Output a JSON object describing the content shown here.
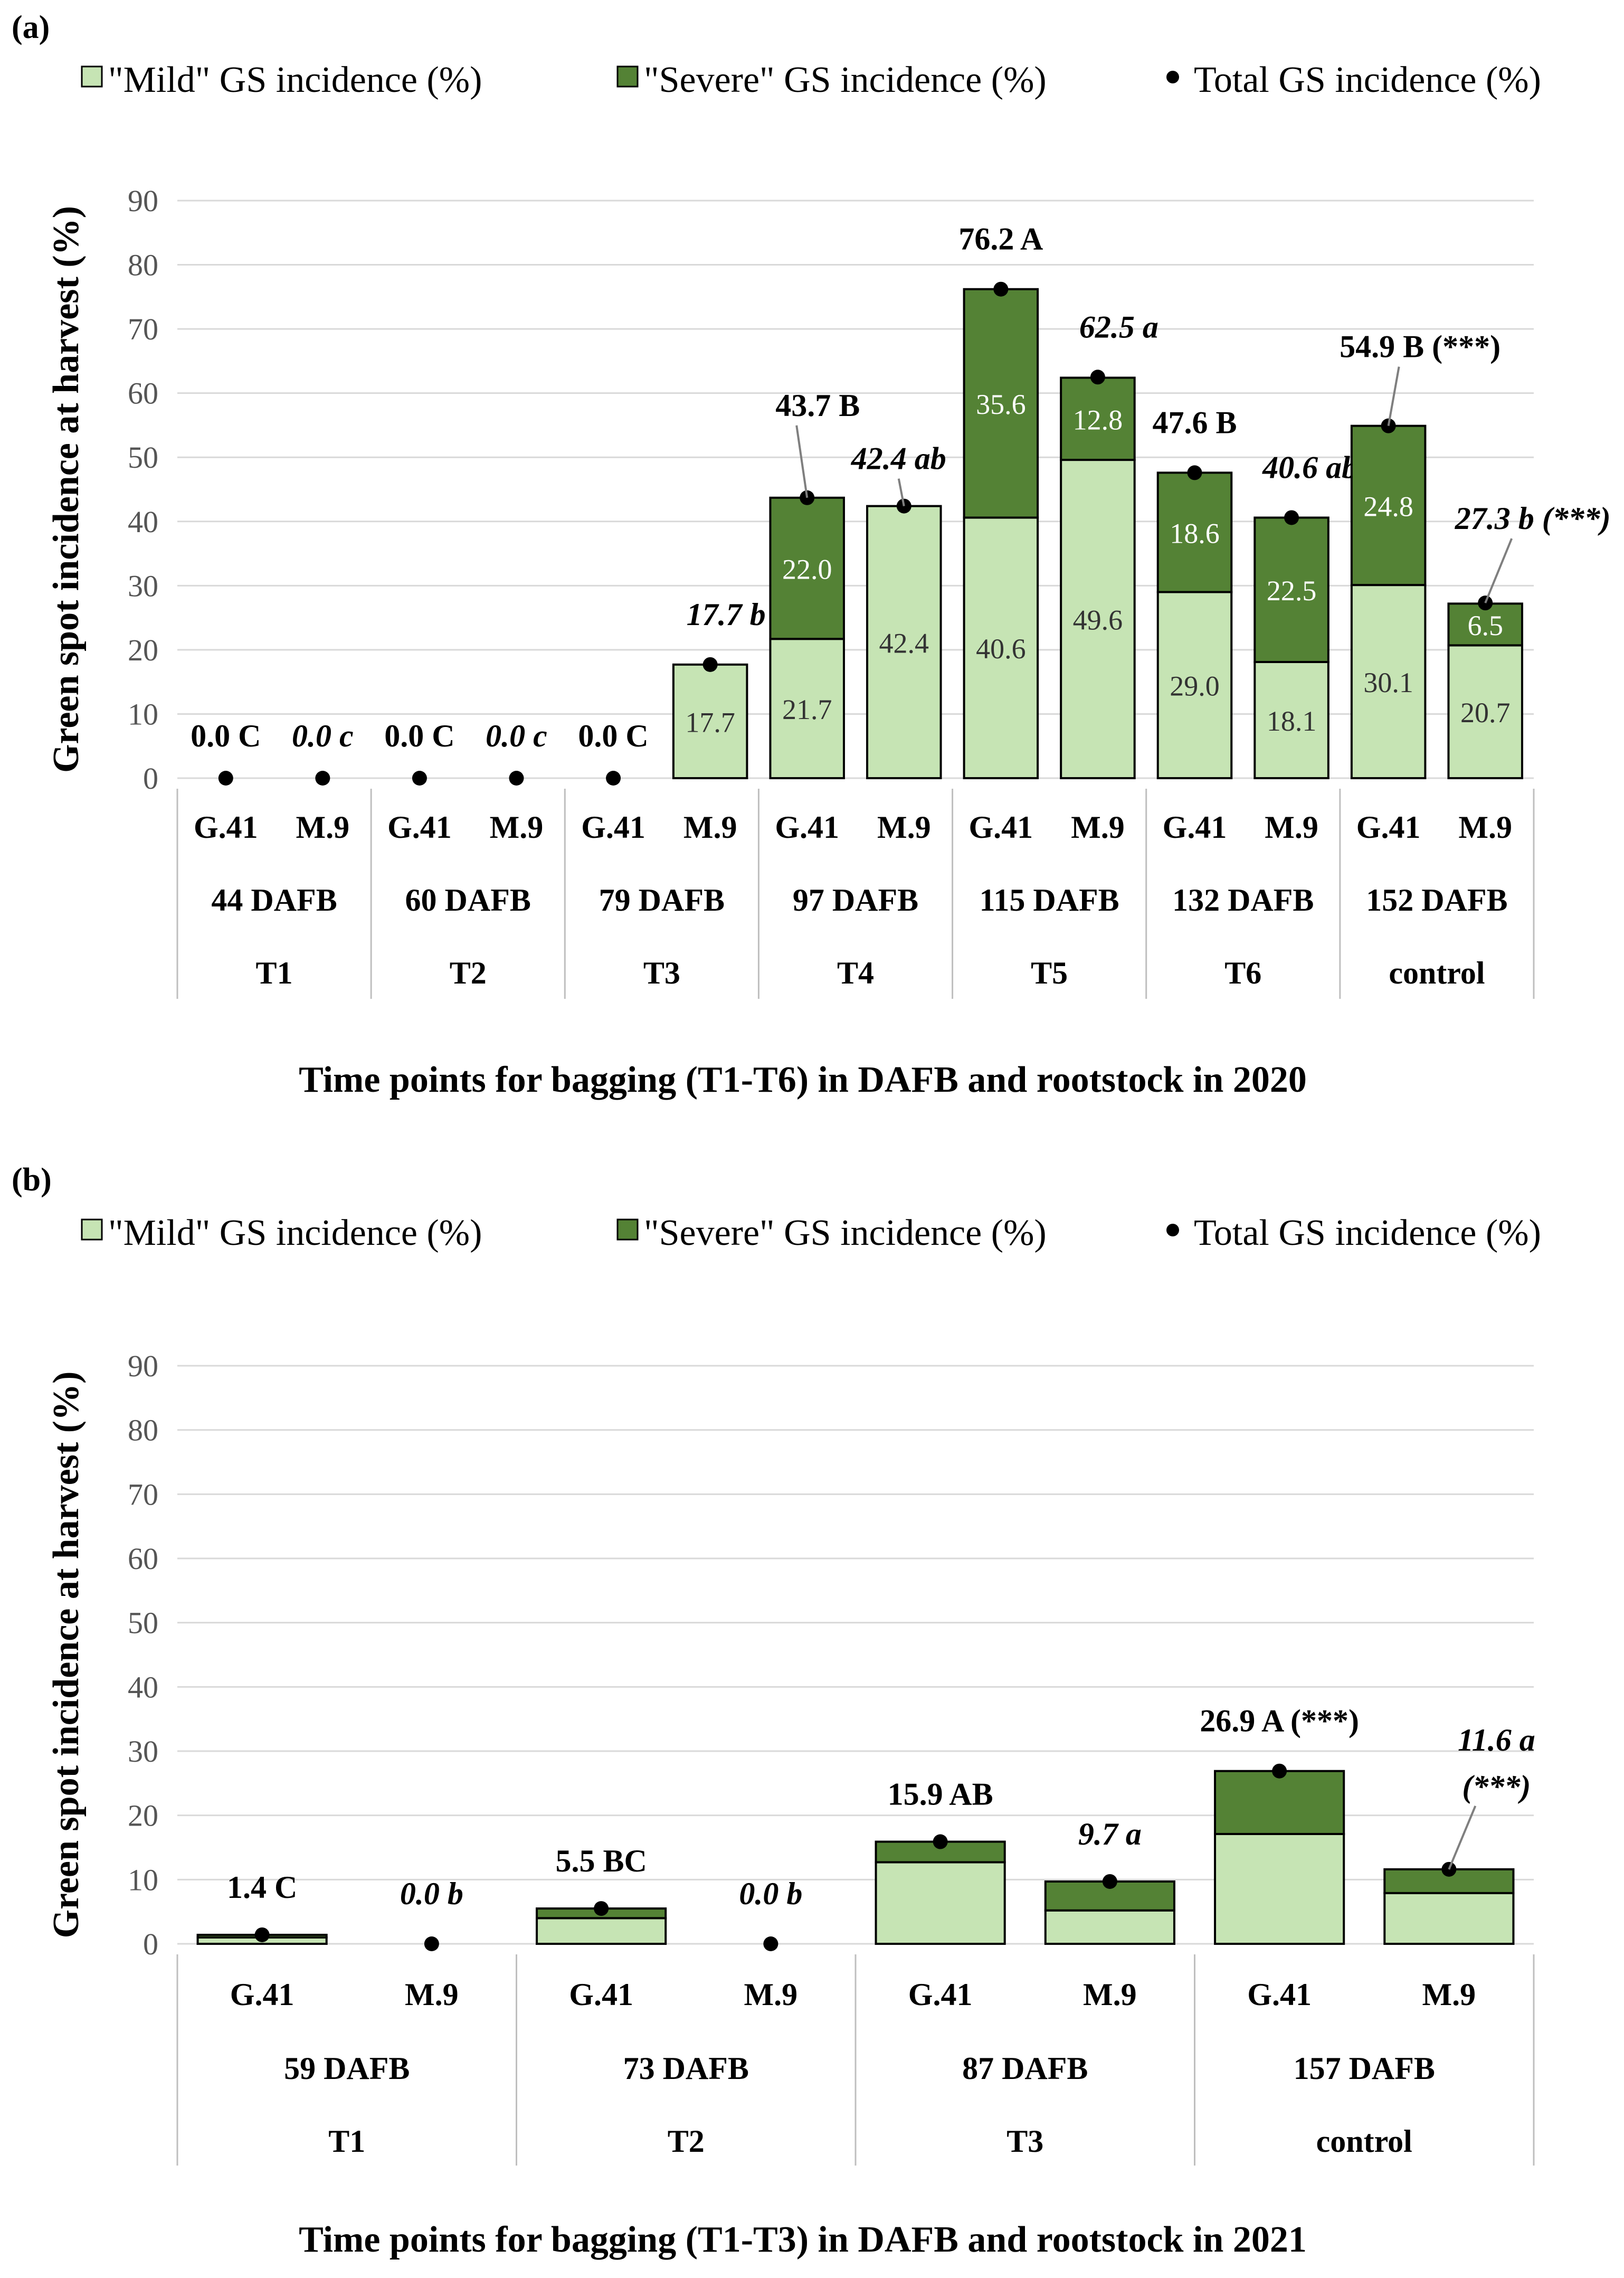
{
  "legend": {
    "mild": "\"Mild\" GS incidence (%)",
    "severe": "\"Severe\" GS incidence (%)",
    "total": "Total GS incidence (%)"
  },
  "colors": {
    "mild": "#c6e4b4",
    "severe": "#548235",
    "edge": "#000000",
    "grid": "#d9d9d9",
    "dot": "#000000"
  },
  "chart_data": [
    {
      "panel": "(a)",
      "type": "bar",
      "stacked": true,
      "ylabel": "Green spot incidence at harvest (%)",
      "xlabel": "Time points for bagging (T1-T6) in DAFB and rootstock in 2020",
      "ylim": [
        0,
        90
      ],
      "yticks": [
        0,
        10,
        20,
        30,
        40,
        50,
        60,
        70,
        80,
        90
      ],
      "grid": true,
      "groups": [
        {
          "time": "T1",
          "dafb": "44 DAFB",
          "rootstocks": [
            "G.41",
            "M.9"
          ]
        },
        {
          "time": "T2",
          "dafb": "60 DAFB",
          "rootstocks": [
            "G.41",
            "M.9"
          ]
        },
        {
          "time": "T3",
          "dafb": "79 DAFB",
          "rootstocks": [
            "G.41",
            "M.9"
          ]
        },
        {
          "time": "T4",
          "dafb": "97 DAFB",
          "rootstocks": [
            "G.41",
            "M.9"
          ]
        },
        {
          "time": "T5",
          "dafb": "115 DAFB",
          "rootstocks": [
            "G.41",
            "M.9"
          ]
        },
        {
          "time": "T6",
          "dafb": "132 DAFB",
          "rootstocks": [
            "G.41",
            "M.9"
          ]
        },
        {
          "time": "control",
          "dafb": "152  DAFB",
          "rootstocks": [
            "G.41",
            "M.9"
          ]
        }
      ],
      "series": [
        {
          "name": "Mild",
          "values": [
            0,
            0,
            0,
            0,
            0,
            17.7,
            21.7,
            42.4,
            40.6,
            49.6,
            29.0,
            18.1,
            30.1,
            20.7
          ],
          "labels": [
            "",
            "",
            "",
            "",
            "",
            "17.7",
            "21.7",
            "42.4",
            "40.6",
            "49.6",
            "29.0",
            "18.1",
            "30.1",
            "20.7"
          ]
        },
        {
          "name": "Severe",
          "values": [
            0,
            0,
            0,
            0,
            0,
            0,
            22.0,
            0,
            35.6,
            12.8,
            18.6,
            22.5,
            24.8,
            6.5
          ],
          "labels": [
            "",
            "",
            "",
            "",
            "",
            "",
            "22.0",
            "",
            "35.6",
            "12.8",
            "18.6",
            "22.5",
            "24.8",
            "6.5"
          ]
        },
        {
          "name": "Total",
          "values": [
            0,
            0,
            0,
            0,
            0,
            17.7,
            43.7,
            42.4,
            76.2,
            62.5,
            47.6,
            40.6,
            54.9,
            27.3
          ]
        }
      ],
      "total_labels": [
        {
          "value": "0.0",
          "letter": "C",
          "italic": false,
          "suffix": ""
        },
        {
          "value": "0.0",
          "letter": "c",
          "italic": true,
          "suffix": ""
        },
        {
          "value": "0.0",
          "letter": "C",
          "italic": false,
          "suffix": ""
        },
        {
          "value": "0.0",
          "letter": "c",
          "italic": true,
          "suffix": ""
        },
        {
          "value": "0.0",
          "letter": "C",
          "italic": false,
          "suffix": ""
        },
        {
          "value": "17.7",
          "letter": "b",
          "italic": true,
          "suffix": ""
        },
        {
          "value": "43.7",
          "letter": "B",
          "italic": false,
          "suffix": ""
        },
        {
          "value": "42.4",
          "letter": "ab",
          "italic": true,
          "suffix": ""
        },
        {
          "value": "76.2",
          "letter": "A",
          "italic": false,
          "suffix": ""
        },
        {
          "value": "62.5",
          "letter": "a",
          "italic": true,
          "suffix": ""
        },
        {
          "value": "47.6",
          "letter": "B",
          "italic": false,
          "suffix": ""
        },
        {
          "value": "40.6",
          "letter": "ab",
          "italic": true,
          "suffix": ""
        },
        {
          "value": "54.9",
          "letter": "B",
          "italic": false,
          "suffix": "(***)"
        },
        {
          "value": "27.3",
          "letter": "b",
          "italic": true,
          "suffix": "(***)"
        }
      ]
    },
    {
      "panel": "(b)",
      "type": "bar",
      "stacked": true,
      "ylabel": "Green spot incidence at harvest  (%)",
      "xlabel": "Time points for bagging (T1-T3) in DAFB and rootstock in 2021",
      "ylim": [
        0,
        90
      ],
      "yticks": [
        0,
        10,
        20,
        30,
        40,
        50,
        60,
        70,
        80,
        90
      ],
      "grid": true,
      "groups": [
        {
          "time": "T1",
          "dafb": "59 DAFB",
          "rootstocks": [
            "G.41",
            "M.9"
          ]
        },
        {
          "time": "T2",
          "dafb": "73 DAFB",
          "rootstocks": [
            "G.41",
            "M.9"
          ]
        },
        {
          "time": "T3",
          "dafb": "87 DAFB",
          "rootstocks": [
            "G.41",
            "M.9"
          ]
        },
        {
          "time": "control",
          "dafb": "157 DAFB",
          "rootstocks": [
            "G.41",
            "M.9"
          ]
        }
      ],
      "series": [
        {
          "name": "Mild",
          "values": [
            1.0,
            0,
            4.0,
            0,
            12.7,
            5.2,
            17.1,
            7.9
          ]
        },
        {
          "name": "Severe",
          "values": [
            0.4,
            0,
            1.5,
            0,
            3.2,
            4.5,
            9.8,
            3.7
          ]
        },
        {
          "name": "Total",
          "values": [
            1.4,
            0,
            5.5,
            0,
            15.9,
            9.7,
            26.9,
            11.6
          ]
        }
      ],
      "total_labels": [
        {
          "value": "1.4",
          "letter": "C",
          "italic": false,
          "suffix": ""
        },
        {
          "value": "0.0",
          "letter": "b",
          "italic": true,
          "suffix": ""
        },
        {
          "value": "5.5",
          "letter": "BC",
          "italic": false,
          "suffix": ""
        },
        {
          "value": "0.0",
          "letter": "b",
          "italic": true,
          "suffix": ""
        },
        {
          "value": "15.9",
          "letter": "AB",
          "italic": false,
          "suffix": ""
        },
        {
          "value": "9.7",
          "letter": "a",
          "italic": true,
          "suffix": ""
        },
        {
          "value": "26.9",
          "letter": "A",
          "italic": false,
          "suffix": "(***)"
        },
        {
          "value": "11.6",
          "letter": "a",
          "italic": true,
          "suffix": "(***)"
        }
      ]
    }
  ]
}
